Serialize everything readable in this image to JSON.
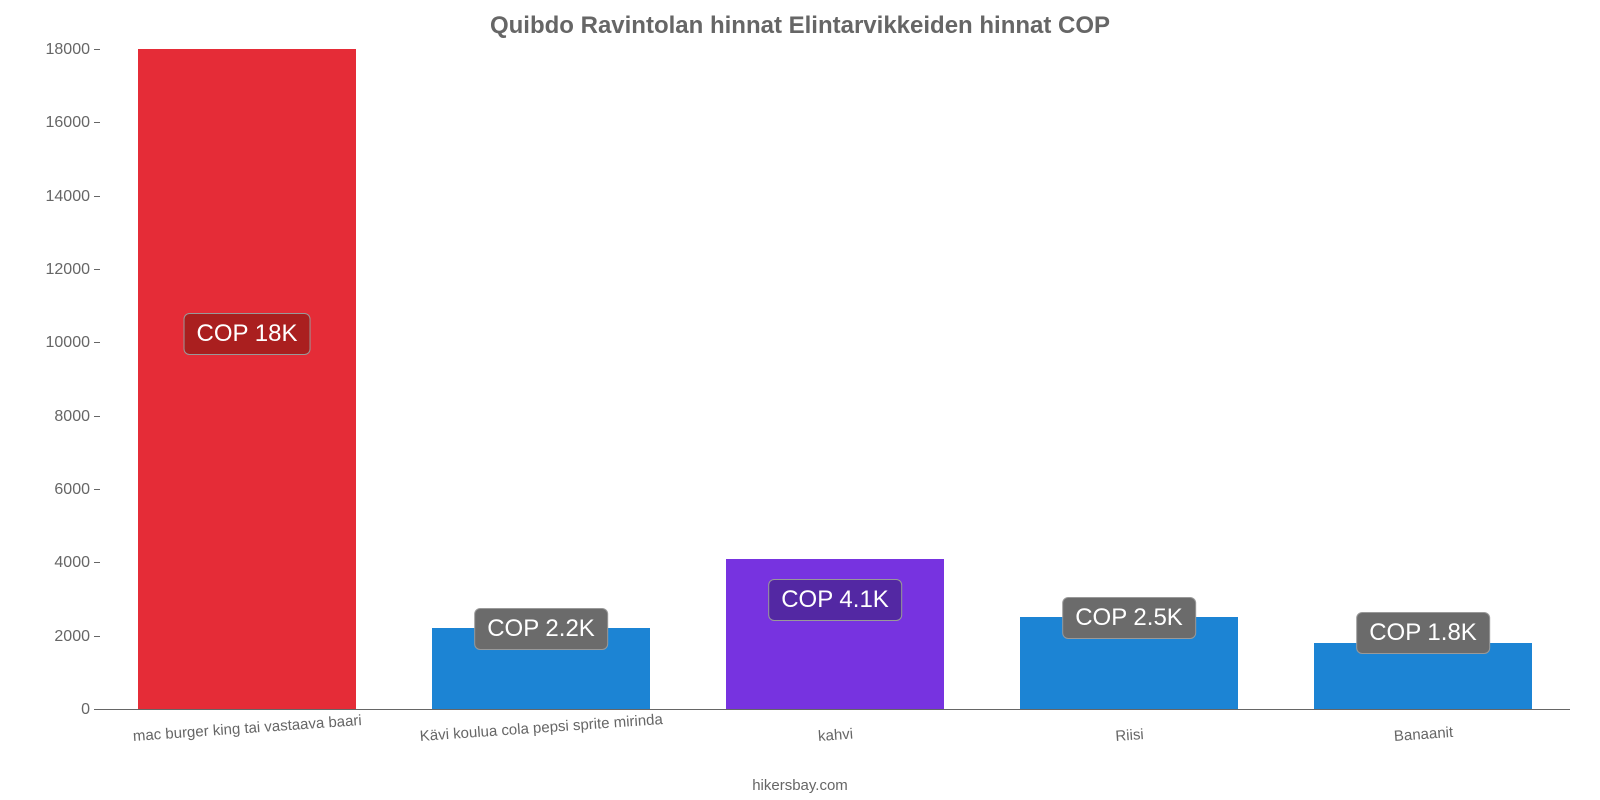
{
  "chart": {
    "type": "bar",
    "title": "Quibdo Ravintolan hinnat Elintarvikkeiden hinnat COP",
    "title_fontsize": 24,
    "title_color": "#666666",
    "background_color": "#ffffff",
    "categories": [
      "mac burger king tai vastaava baari",
      "Kävi koulua cola pepsi sprite mirinda",
      "kahvi",
      "Riisi",
      "Banaanit"
    ],
    "values": [
      18000,
      2200,
      4100,
      2500,
      1800
    ],
    "bar_colors": [
      "#e52c37",
      "#1c84d4",
      "#7733e0",
      "#1c84d4",
      "#1c84d4"
    ],
    "data_labels": [
      "COP 18K",
      "COP 2.2K",
      "COP 4.1K",
      "COP 2.5K",
      "COP 1.8K"
    ],
    "data_label_bg": [
      "#aa1f1f",
      "#6b6b6b",
      "#5328a3",
      "#6b6b6b",
      "#6b6b6b"
    ],
    "data_label_fontsize": 24,
    "data_label_border_color": "#999999",
    "data_label_y_value": [
      10250,
      2200,
      3000,
      2500,
      2100
    ],
    "ylim": [
      0,
      18000
    ],
    "ytick_step": 2000,
    "yticks": [
      0,
      2000,
      4000,
      6000,
      8000,
      10000,
      12000,
      14000,
      16000,
      18000
    ],
    "axis_color": "#666666",
    "tick_fontsize": 16,
    "tick_color": "#666666",
    "bar_width": 0.74,
    "xlabel_rotation": -4,
    "xlabel_fontsize": 15,
    "attribution": "hikersbay.com",
    "attribution_color": "#666666",
    "attribution_fontsize": 15
  }
}
